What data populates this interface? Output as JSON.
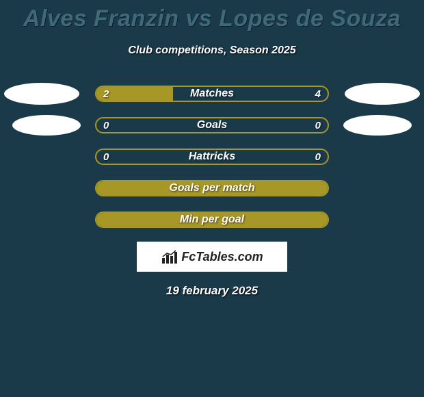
{
  "title": "Alves Franzin vs Lopes de Souza",
  "subtitle": "Club competitions, Season 2025",
  "date": "19 february 2025",
  "colors": {
    "background": "#1a3a4a",
    "bar_fill": "#a79726",
    "bar_border": "#a79726",
    "title_color": "#3f6878",
    "text_color": "#ffffff",
    "badge_color": "#ffffff"
  },
  "logo": {
    "text": "FcTables.com"
  },
  "rows": [
    {
      "label": "Matches",
      "left_value": "2",
      "right_value": "4",
      "left_fill_pct": 33,
      "right_fill_pct": 0,
      "show_badges": true,
      "badge_size": "large"
    },
    {
      "label": "Goals",
      "left_value": "0",
      "right_value": "0",
      "left_fill_pct": 0,
      "right_fill_pct": 0,
      "show_badges": true,
      "badge_size": "small"
    },
    {
      "label": "Hattricks",
      "left_value": "0",
      "right_value": "0",
      "left_fill_pct": 0,
      "right_fill_pct": 0,
      "show_badges": false
    },
    {
      "label": "Goals per match",
      "left_value": "",
      "right_value": "",
      "full_fill": true,
      "show_badges": false
    },
    {
      "label": "Min per goal",
      "left_value": "",
      "right_value": "",
      "full_fill": true,
      "show_badges": false
    }
  ]
}
